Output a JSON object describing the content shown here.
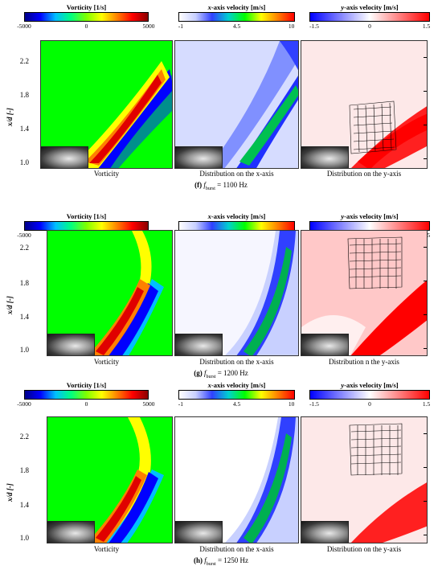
{
  "colorbars": {
    "vorticity": {
      "title": "Vorticity [1/s]",
      "ticks": [
        "-5000",
        "0",
        "5000"
      ]
    },
    "xvel": {
      "title_pre": "x",
      "title_post": "-axis velocity [m/s]",
      "ticks": [
        "-1",
        "4.5",
        "10"
      ]
    },
    "yvel": {
      "title_pre": "y",
      "title_post": "-axis velocity [m/s]",
      "ticks": [
        "-1.5",
        "0",
        "1.5"
      ]
    }
  },
  "colors": {
    "jet": [
      "#00008b",
      "#0000ff",
      "#00bfff",
      "#00ff80",
      "#7fff00",
      "#ffff00",
      "#ff8000",
      "#ff0000",
      "#8b0000"
    ],
    "xvel": [
      "#ffffff",
      "#c8d0ff",
      "#3040ff",
      "#00d0d0",
      "#00ff00",
      "#ffff00",
      "#ff8000",
      "#ff0000"
    ],
    "yvel": [
      "#0000ff",
      "#8080ff",
      "#ffffff",
      "#ff8080",
      "#ff0000"
    ]
  },
  "yaxis": {
    "label": "x/d [-]",
    "ticks": [
      "2.2",
      "1.8",
      "1.4",
      "1.0"
    ]
  },
  "groups": [
    {
      "captions": [
        "Vorticity",
        "Distribution on the x-axis",
        "Distribution on the y-axis"
      ],
      "caption_letter": "(f)",
      "caption_sym": "f",
      "caption_sub": "burst",
      "caption_val": " = 1100 Hz"
    },
    {
      "captions": [
        "Vorticity",
        "Distribution on the x-axis",
        "Distribution n the y-axis"
      ],
      "caption_letter": "(g)",
      "caption_sym": "f",
      "caption_sub": "burst",
      "caption_val": " = 1200 Hz"
    },
    {
      "captions": [
        "Vorticity",
        "Distribution on the x-axis",
        "Distribution on the y-axis"
      ],
      "caption_letter": "(h)",
      "caption_sym": "f",
      "caption_sub": "burst",
      "caption_val": " = 1250 Hz"
    }
  ]
}
